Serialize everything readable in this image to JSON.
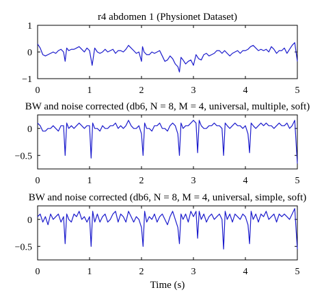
{
  "chart_data": [
    {
      "type": "line",
      "title": "r4 abdomen 1 (Physionet Dataset)",
      "xlabel": "",
      "ylabel": "",
      "xlim": [
        0,
        5
      ],
      "ylim": [
        -1,
        1
      ],
      "x_ticks": [
        "0",
        "1",
        "2",
        "3",
        "4",
        "5"
      ],
      "y_ticks": [
        "1",
        "0",
        "−1"
      ],
      "line_color": "#1a1acc",
      "series": [
        {
          "x": [
            0,
            0.05,
            0.1,
            0.15,
            0.2,
            0.25,
            0.3,
            0.35,
            0.4,
            0.45,
            0.5,
            0.53,
            0.56,
            0.6,
            0.65,
            0.7,
            0.75,
            0.8,
            0.85,
            0.9,
            0.95,
            1.0,
            1.05,
            1.1,
            1.15,
            1.2,
            1.25,
            1.3,
            1.35,
            1.4,
            1.45,
            1.5,
            1.55,
            1.6,
            1.65,
            1.7,
            1.75,
            1.8,
            1.85,
            1.9,
            1.95,
            2.0,
            2.02,
            2.05,
            2.1,
            2.15,
            2.2,
            2.25,
            2.3,
            2.35,
            2.4,
            2.45,
            2.5,
            2.55,
            2.6,
            2.65,
            2.7,
            2.73,
            2.76,
            2.8,
            2.85,
            2.9,
            2.95,
            3.0,
            3.05,
            3.1,
            3.15,
            3.2,
            3.25,
            3.3,
            3.35,
            3.4,
            3.45,
            3.5,
            3.55,
            3.6,
            3.65,
            3.7,
            3.75,
            3.8,
            3.85,
            3.9,
            3.95,
            4.0,
            4.05,
            4.1,
            4.15,
            4.2,
            4.25,
            4.3,
            4.35,
            4.4,
            4.45,
            4.5,
            4.55,
            4.6,
            4.65,
            4.7,
            4.75,
            4.8,
            4.85,
            4.9,
            4.95,
            5.0
          ],
          "y": [
            0.3,
            0.15,
            -0.1,
            -0.15,
            -0.1,
            -0.05,
            0.0,
            -0.05,
            0.05,
            0.1,
            0.0,
            -0.35,
            0.15,
            0.05,
            0.1,
            0.1,
            0.15,
            0.2,
            0.1,
            0.0,
            0.15,
            0.05,
            -0.5,
            0.15,
            0.0,
            -0.05,
            0.0,
            0.1,
            0.0,
            0.05,
            0.1,
            -0.05,
            0.05,
            0.05,
            0.0,
            0.1,
            0.25,
            0.15,
            0.05,
            -0.05,
            0.0,
            -0.35,
            0.2,
            0.0,
            -0.1,
            -0.1,
            0.0,
            -0.05,
            0.0,
            0.05,
            -0.15,
            -0.35,
            -0.3,
            -0.15,
            -0.25,
            -0.45,
            -0.55,
            -0.75,
            -0.2,
            -0.3,
            -0.45,
            -0.35,
            -0.3,
            -0.5,
            -0.1,
            -0.25,
            -0.3,
            -0.1,
            -0.05,
            -0.15,
            -0.1,
            -0.05,
            0.05,
            0.05,
            -0.05,
            0.05,
            -0.05,
            -0.15,
            -0.05,
            0.0,
            0.05,
            -0.05,
            0.05,
            0.05,
            0.1,
            0.2,
            0.25,
            0.15,
            0.05,
            0.1,
            0.05,
            0.1,
            0.0,
            0.2,
            0.1,
            -0.05,
            0.05,
            0.05,
            0.15,
            -0.05,
            0.1,
            0.25,
            0.35,
            -0.35
          ]
        }
      ]
    },
    {
      "type": "line",
      "title": "BW and noise corrected (db6, N = 8, M = 4, universal, multiple, soft)",
      "xlabel": "",
      "ylabel": "",
      "xlim": [
        0,
        5
      ],
      "ylim": [
        -0.75,
        0.25
      ],
      "x_ticks": [
        "0",
        "1",
        "2",
        "3",
        "4",
        "5"
      ],
      "y_ticks": [
        "0",
        "−0.5"
      ],
      "line_color": "#1a1acc",
      "series": [
        {
          "x": [
            0,
            0.05,
            0.1,
            0.15,
            0.2,
            0.25,
            0.3,
            0.35,
            0.4,
            0.45,
            0.5,
            0.53,
            0.56,
            0.6,
            0.65,
            0.7,
            0.75,
            0.8,
            0.85,
            0.9,
            0.95,
            1.0,
            1.03,
            1.06,
            1.1,
            1.15,
            1.2,
            1.25,
            1.3,
            1.35,
            1.4,
            1.45,
            1.5,
            1.55,
            1.6,
            1.65,
            1.7,
            1.75,
            1.8,
            1.85,
            1.9,
            1.95,
            2.0,
            2.03,
            2.06,
            2.1,
            2.15,
            2.2,
            2.25,
            2.3,
            2.35,
            2.4,
            2.45,
            2.5,
            2.55,
            2.6,
            2.65,
            2.7,
            2.73,
            2.76,
            2.8,
            2.85,
            2.9,
            2.95,
            3.0,
            3.05,
            3.08,
            3.11,
            3.15,
            3.2,
            3.25,
            3.3,
            3.35,
            3.4,
            3.45,
            3.5,
            3.55,
            3.58,
            3.61,
            3.65,
            3.7,
            3.75,
            3.8,
            3.85,
            3.9,
            3.95,
            4.0,
            4.05,
            4.08,
            4.11,
            4.15,
            4.2,
            4.25,
            4.3,
            4.35,
            4.4,
            4.45,
            4.5,
            4.55,
            4.6,
            4.65,
            4.7,
            4.75,
            4.8,
            4.85,
            4.9,
            4.95,
            5.0
          ],
          "y": [
            0.1,
            0.05,
            -0.05,
            -0.05,
            0.0,
            0.0,
            0.05,
            0.0,
            -0.05,
            0.05,
            0.05,
            -0.5,
            0.1,
            0.0,
            0.05,
            0.0,
            0.05,
            0.1,
            0.05,
            0.0,
            0.05,
            0.05,
            -0.55,
            0.1,
            0.0,
            0.0,
            -0.05,
            0.05,
            0.0,
            0.0,
            0.05,
            0.05,
            0.1,
            0.0,
            0.05,
            0.0,
            0.05,
            0.15,
            0.05,
            0.0,
            0.0,
            0.05,
            -0.1,
            -0.5,
            0.1,
            0.0,
            0.0,
            -0.05,
            0.05,
            0.05,
            0.1,
            0.0,
            0.0,
            -0.05,
            0.05,
            0.1,
            0.05,
            -0.1,
            -0.5,
            0.1,
            0.0,
            0.05,
            0.05,
            0.1,
            0.15,
            0.1,
            -0.45,
            0.15,
            0.05,
            0.0,
            0.0,
            0.05,
            0.05,
            0.1,
            0.05,
            0.05,
            0.0,
            -0.5,
            0.1,
            0.05,
            0.0,
            0.05,
            0.1,
            0.05,
            0.05,
            0.0,
            0.05,
            -0.1,
            -0.45,
            0.1,
            0.05,
            0.0,
            0.05,
            0.1,
            0.05,
            0.1,
            0.05,
            0.05,
            0.0,
            0.05,
            0.1,
            0.05,
            0.05,
            0.1,
            0.0,
            0.05,
            0.15,
            -0.65
          ]
        }
      ]
    },
    {
      "type": "line",
      "title": "BW and noise corrected (db6, N = 8, M = 4, universal, simple, soft)",
      "xlabel": "Time (s)",
      "ylabel": "",
      "xlim": [
        0,
        5
      ],
      "ylim": [
        -0.75,
        0.25
      ],
      "x_ticks": [
        "0",
        "1",
        "2",
        "3",
        "4",
        "5"
      ],
      "y_ticks": [
        "0",
        "−0.5"
      ],
      "line_color": "#1a1acc",
      "series": [
        {
          "x": [
            0,
            0.05,
            0.1,
            0.15,
            0.2,
            0.25,
            0.3,
            0.35,
            0.4,
            0.45,
            0.5,
            0.53,
            0.56,
            0.6,
            0.65,
            0.7,
            0.75,
            0.8,
            0.85,
            0.9,
            0.95,
            1.0,
            1.03,
            1.06,
            1.1,
            1.15,
            1.2,
            1.25,
            1.3,
            1.35,
            1.4,
            1.45,
            1.5,
            1.55,
            1.6,
            1.65,
            1.7,
            1.75,
            1.8,
            1.85,
            1.9,
            1.95,
            2.0,
            2.03,
            2.06,
            2.1,
            2.15,
            2.2,
            2.25,
            2.3,
            2.35,
            2.4,
            2.45,
            2.5,
            2.55,
            2.6,
            2.65,
            2.7,
            2.73,
            2.76,
            2.8,
            2.85,
            2.9,
            2.95,
            3.0,
            3.05,
            3.08,
            3.11,
            3.15,
            3.2,
            3.25,
            3.3,
            3.35,
            3.4,
            3.45,
            3.5,
            3.55,
            3.58,
            3.61,
            3.65,
            3.7,
            3.75,
            3.8,
            3.85,
            3.9,
            3.95,
            4.0,
            4.05,
            4.08,
            4.11,
            4.15,
            4.2,
            4.25,
            4.3,
            4.35,
            4.4,
            4.45,
            4.5,
            4.55,
            4.6,
            4.65,
            4.7,
            4.75,
            4.8,
            4.85,
            4.9,
            4.95,
            5.0
          ],
          "y": [
            0.05,
            0.1,
            -0.05,
            0.05,
            -0.1,
            0.1,
            0.0,
            0.05,
            0.1,
            -0.05,
            0.05,
            -0.45,
            0.1,
            0.0,
            -0.05,
            0.1,
            0.05,
            0.15,
            0.0,
            0.05,
            -0.05,
            0.05,
            -0.5,
            0.15,
            -0.05,
            0.1,
            -0.05,
            0.05,
            0.1,
            -0.05,
            0.0,
            0.1,
            0.15,
            -0.05,
            0.1,
            0.05,
            -0.05,
            0.15,
            0.05,
            -0.05,
            0.05,
            0.0,
            -0.15,
            -0.5,
            0.15,
            -0.05,
            0.05,
            0.0,
            0.1,
            -0.05,
            0.05,
            0.1,
            0.0,
            -0.1,
            0.05,
            0.15,
            0.0,
            -0.15,
            -0.45,
            0.1,
            0.0,
            0.1,
            -0.05,
            0.15,
            0.05,
            0.15,
            -0.35,
            0.15,
            0.0,
            0.1,
            -0.05,
            0.05,
            0.1,
            0.0,
            0.05,
            0.1,
            0.0,
            -0.55,
            0.15,
            0.0,
            0.1,
            -0.05,
            0.1,
            0.05,
            0.0,
            0.1,
            0.05,
            -0.1,
            -0.45,
            0.15,
            0.0,
            0.1,
            -0.05,
            0.1,
            0.05,
            0.15,
            0.0,
            0.05,
            0.1,
            -0.05,
            0.1,
            0.05,
            0.1,
            0.05,
            0.0,
            0.1,
            0.2,
            -0.55
          ]
        }
      ]
    }
  ]
}
